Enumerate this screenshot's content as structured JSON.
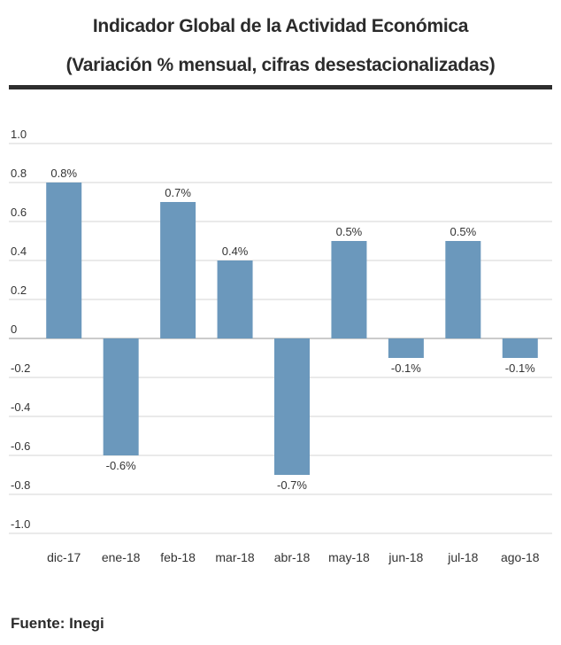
{
  "title": "Indicador Global de la Actividad Económica",
  "subtitle": "(Variación % mensual, cifras desestacionalizadas)",
  "source": "Fuente: Inegi",
  "colors": {
    "bar": "#6b98bc",
    "grid": "#d6d6d6",
    "zero": "#9a9a9a",
    "text": "#333333",
    "rule": "#2e2e2e"
  },
  "chart_data": {
    "type": "bar",
    "categories": [
      "dic-17",
      "ene-18",
      "feb-18",
      "mar-18",
      "abr-18",
      "may-18",
      "jun-18",
      "jul-18",
      "ago-18"
    ],
    "values": [
      0.8,
      -0.6,
      0.7,
      0.4,
      -0.7,
      0.5,
      -0.1,
      0.5,
      -0.1
    ],
    "data_labels": [
      "0.8%",
      "-0.6%",
      "0.7%",
      "0.4%",
      "-0.7%",
      "0.5%",
      "-0.1%",
      "0.5%",
      "-0.1%"
    ],
    "ylim": [
      -1.0,
      1.0
    ],
    "yticks": [
      1.0,
      0.8,
      0.6,
      0.4,
      0.2,
      0,
      -0.2,
      -0.4,
      -0.6,
      -0.8,
      -1.0
    ],
    "ytick_labels": [
      "1.0",
      "0.8",
      "0.6",
      "0.4",
      "0.2",
      "0",
      "-0.2",
      "-0.4",
      "-0.6",
      "-0.8",
      "-1.0"
    ],
    "grid": true,
    "xlabel": "",
    "ylabel": ""
  }
}
